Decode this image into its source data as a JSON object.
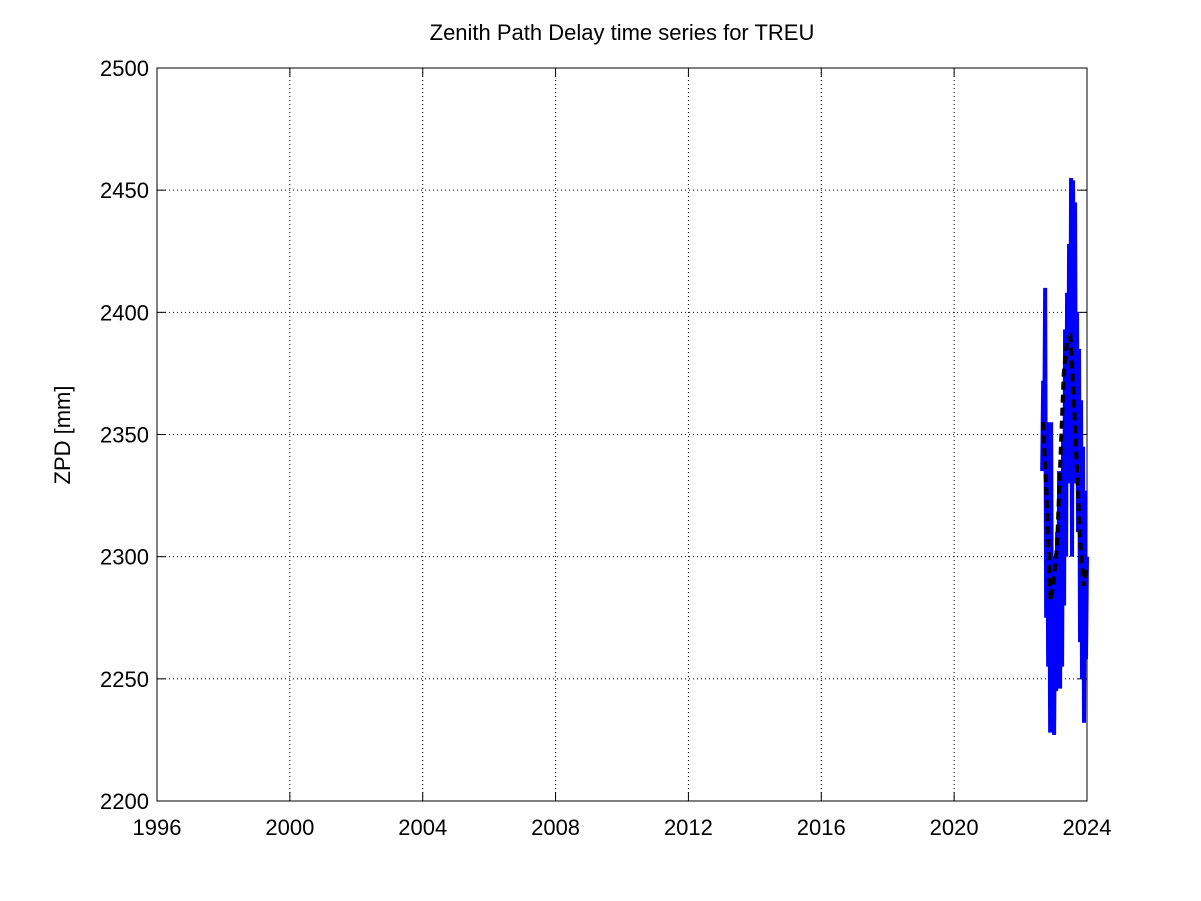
{
  "chart_data": {
    "type": "line",
    "title": "Zenith Path Delay time series for TREU",
    "y_label": "ZPD [mm]",
    "xlim": [
      1996,
      2024
    ],
    "xticks": [
      1996,
      2000,
      2004,
      2008,
      2012,
      2016,
      2020,
      2024
    ],
    "ylim": [
      2200,
      2500
    ],
    "yticks": [
      2200,
      2250,
      2300,
      2350,
      2400,
      2450,
      2500
    ],
    "grid": true,
    "series": [
      {
        "color": "#0000ff",
        "line_width": 4,
        "line_style": "solid",
        "x": [
          2022.65,
          2022.68,
          2022.71,
          2022.74,
          2022.77,
          2022.8,
          2022.83,
          2022.86,
          2022.89,
          2022.92,
          2022.95,
          2022.98,
          2023.01,
          2023.04,
          2023.07,
          2023.1,
          2023.13,
          2023.16,
          2023.19,
          2023.22,
          2023.25,
          2023.28,
          2023.31,
          2023.34,
          2023.37,
          2023.4,
          2023.43,
          2023.46,
          2023.49,
          2023.52,
          2023.55,
          2023.58,
          2023.61,
          2023.64,
          2023.67,
          2023.7,
          2023.73,
          2023.76,
          2023.79,
          2023.82,
          2023.85,
          2023.88,
          2023.91,
          2023.94,
          2023.97,
          2024.0
        ],
        "values": [
          2335,
          2372,
          2345,
          2410,
          2275,
          2355,
          2255,
          2330,
          2228,
          2355,
          2240,
          2300,
          2227,
          2290,
          2245,
          2310,
          2250,
          2335,
          2246,
          2320,
          2255,
          2350,
          2280,
          2393,
          2300,
          2408,
          2330,
          2428,
          2340,
          2455,
          2300,
          2454,
          2340,
          2445,
          2330,
          2400,
          2310,
          2385,
          2265,
          2364,
          2250,
          2345,
          2232,
          2327,
          2258,
          2300
        ]
      },
      {
        "color": "#000000",
        "line_width": 4,
        "line_style": "dashed",
        "x": [
          2022.68,
          2022.8,
          2022.9,
          2023.0,
          2023.1,
          2023.2,
          2023.3,
          2023.4,
          2023.5,
          2023.6,
          2023.7,
          2023.8,
          2023.9,
          2023.98
        ],
        "values": [
          2355,
          2320,
          2282,
          2290,
          2305,
          2340,
          2375,
          2388,
          2390,
          2365,
          2335,
          2305,
          2288,
          2295
        ]
      }
    ]
  }
}
